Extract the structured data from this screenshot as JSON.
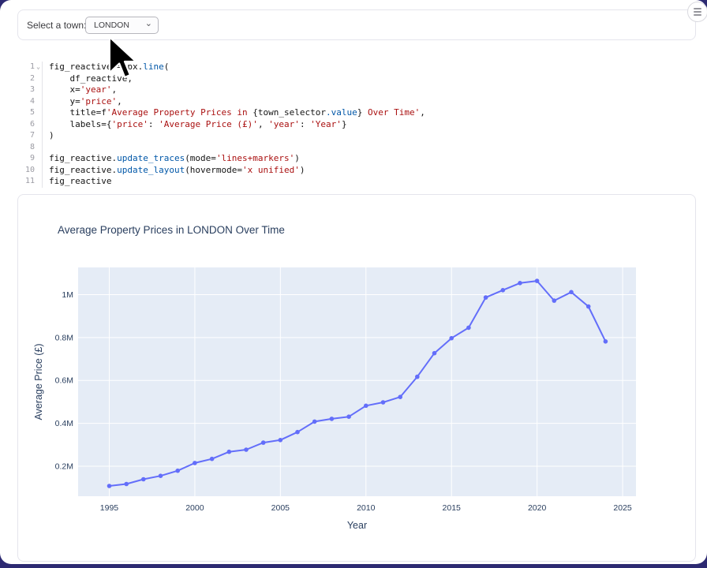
{
  "theme": {
    "navy": "#2d2a72",
    "string": "#aa1111",
    "attr": "#0057a8",
    "plain": "#141414"
  },
  "header": {
    "menu_icon": "hamburger-menu"
  },
  "town_selector": {
    "label": "Select a town:",
    "value": "LONDON",
    "chevron_glyph": "⌄"
  },
  "code_editor": {
    "fold_glyph": "⌄",
    "lines": [
      {
        "n": "1",
        "fold": true,
        "segments": [
          [
            "p",
            "fig_reactive = px."
          ],
          [
            "a",
            "line"
          ],
          [
            "p",
            "("
          ]
        ]
      },
      {
        "n": "2",
        "fold": false,
        "segments": [
          [
            "p",
            "    df_reactive,"
          ]
        ]
      },
      {
        "n": "3",
        "fold": false,
        "segments": [
          [
            "p",
            "    x="
          ],
          [
            "s",
            "'year'"
          ],
          [
            "p",
            ","
          ]
        ]
      },
      {
        "n": "4",
        "fold": false,
        "segments": [
          [
            "p",
            "    y="
          ],
          [
            "s",
            "'price'"
          ],
          [
            "p",
            ","
          ]
        ]
      },
      {
        "n": "5",
        "fold": false,
        "segments": [
          [
            "p",
            "    title=f"
          ],
          [
            "s",
            "'Average Property Prices in "
          ],
          [
            "p",
            "{town_selector"
          ],
          [
            "a",
            ".value"
          ],
          [
            "p",
            "}"
          ],
          [
            "s",
            " Over Time'"
          ],
          [
            "p",
            ","
          ]
        ]
      },
      {
        "n": "6",
        "fold": false,
        "segments": [
          [
            "p",
            "    labels={"
          ],
          [
            "s",
            "'price'"
          ],
          [
            "p",
            ": "
          ],
          [
            "s",
            "'Average Price (£)'"
          ],
          [
            "p",
            ", "
          ],
          [
            "s",
            "'year'"
          ],
          [
            "p",
            ": "
          ],
          [
            "s",
            "'Year'"
          ],
          [
            "p",
            "}"
          ]
        ]
      },
      {
        "n": "7",
        "fold": false,
        "segments": [
          [
            "p",
            ")"
          ]
        ]
      },
      {
        "n": "8",
        "fold": false,
        "segments": []
      },
      {
        "n": "9",
        "fold": false,
        "segments": [
          [
            "p",
            "fig_reactive."
          ],
          [
            "a",
            "update_traces"
          ],
          [
            "p",
            "(mode="
          ],
          [
            "s",
            "'lines+markers'"
          ],
          [
            "p",
            ")"
          ]
        ]
      },
      {
        "n": "10",
        "fold": false,
        "segments": [
          [
            "p",
            "fig_reactive."
          ],
          [
            "a",
            "update_layout"
          ],
          [
            "p",
            "(hovermode="
          ],
          [
            "s",
            "'x unified'"
          ],
          [
            "p",
            ")"
          ]
        ]
      },
      {
        "n": "11",
        "fold": false,
        "segments": [
          [
            "p",
            "fig_reactive"
          ]
        ]
      }
    ]
  },
  "chart_data": {
    "type": "line",
    "title": "Average Property Prices in LONDON Over Time",
    "xlabel": "Year",
    "ylabel": "Average Price (£)",
    "mode": "lines+markers",
    "line_color": "#636efa",
    "plot_bg": "#e5ecf6",
    "grid_color": "#ffffff",
    "text_color": "#2a3f5f",
    "grid": true,
    "legend": false,
    "x_range": [
      1993.18,
      2025.78
    ],
    "y_range_millions": [
      0.06,
      1.127
    ],
    "x_ticks": [
      {
        "v": 1995,
        "label": "1995"
      },
      {
        "v": 2000,
        "label": "2000"
      },
      {
        "v": 2005,
        "label": "2005"
      },
      {
        "v": 2010,
        "label": "2010"
      },
      {
        "v": 2015,
        "label": "2015"
      },
      {
        "v": 2020,
        "label": "2020"
      },
      {
        "v": 2025,
        "label": "2025"
      }
    ],
    "y_ticks": [
      {
        "v": 0.2,
        "label": "0.2M"
      },
      {
        "v": 0.4,
        "label": "0.4M"
      },
      {
        "v": 0.6,
        "label": "0.6M"
      },
      {
        "v": 0.8,
        "label": "0.8M"
      },
      {
        "v": 1.0,
        "label": "1M"
      }
    ],
    "x": [
      1995,
      1996,
      1997,
      1998,
      1999,
      2000,
      2001,
      2002,
      2003,
      2004,
      2005,
      2006,
      2007,
      2008,
      2009,
      2010,
      2011,
      2012,
      2013,
      2014,
      2015,
      2016,
      2017,
      2018,
      2019,
      2020,
      2021,
      2022,
      2023,
      2024
    ],
    "series": [
      {
        "name": "price",
        "values_millions_gbp": [
          0.108,
          0.117,
          0.139,
          0.155,
          0.179,
          0.215,
          0.234,
          0.267,
          0.277,
          0.31,
          0.322,
          0.359,
          0.408,
          0.421,
          0.431,
          0.482,
          0.498,
          0.523,
          0.617,
          0.727,
          0.797,
          0.846,
          0.987,
          1.021,
          1.054,
          1.064,
          0.972,
          1.012,
          0.945,
          0.782
        ]
      }
    ]
  }
}
